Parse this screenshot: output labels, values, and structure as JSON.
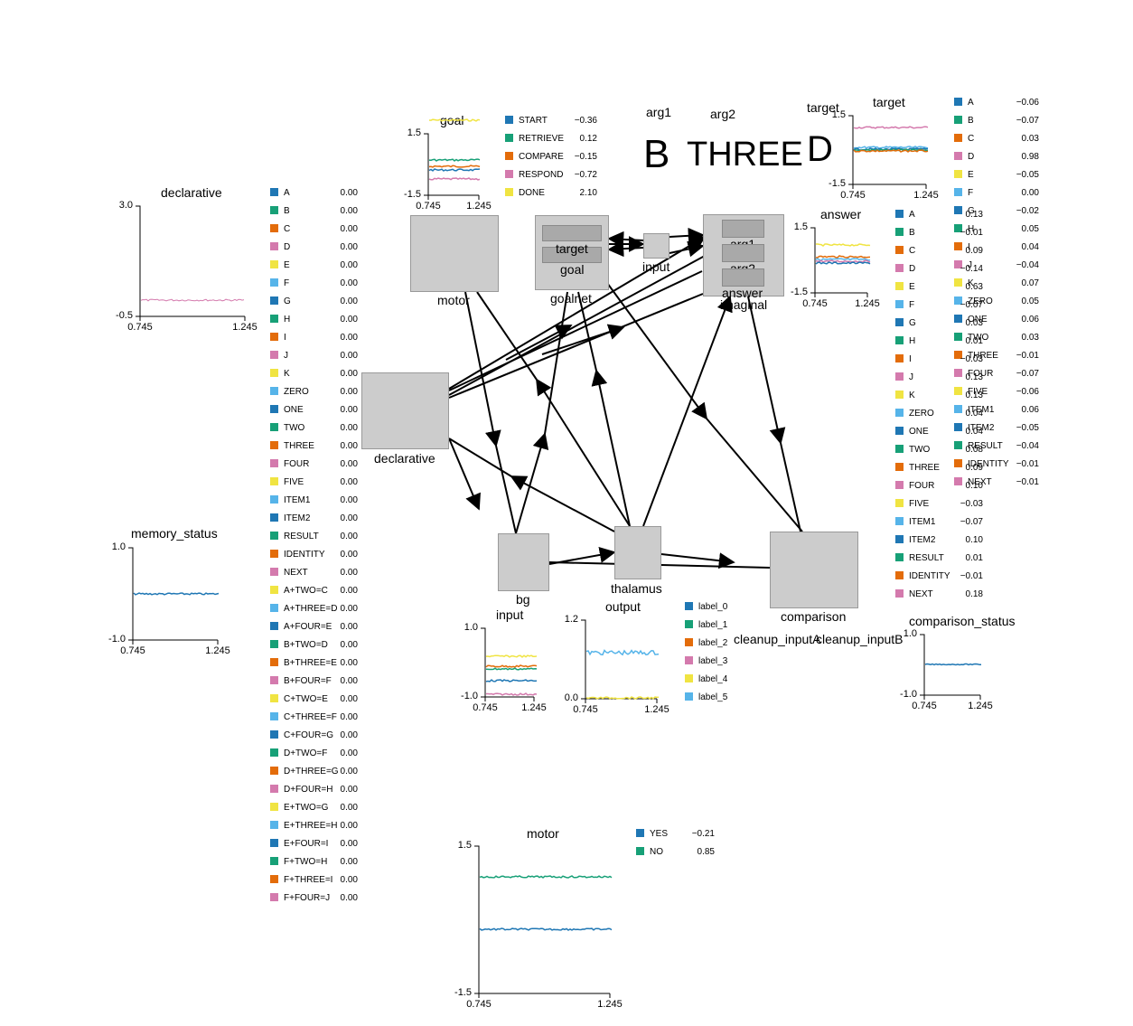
{
  "colors": {
    "c0": "#1f77b4",
    "c1": "#17a077",
    "c2": "#e36c0a",
    "c3": "#d47aad",
    "c4": "#f0e442",
    "c5": "#56b4e9",
    "node": "#cccccc",
    "subnode": "#a9a9a9"
  },
  "network": {
    "nodes": {
      "motor": "motor",
      "goalnet": "goalnet",
      "target": "target",
      "goal": "goal",
      "input": "input",
      "imaginal": "imaginal",
      "arg1": "arg1",
      "arg2": "arg2",
      "answer": "answer",
      "declarative": "declarative",
      "bg": "bg",
      "thalamus": "thalamus",
      "comparison": "comparison",
      "cleanup_inputA": "cleanup_inputA",
      "cleanup_inputB": "cleanup_inputB"
    }
  },
  "semantic_pointer_text": {
    "arg1_label": "arg1",
    "arg1_value": "B",
    "arg2_label": "arg2",
    "arg2_value": "THREE",
    "target_label": "target",
    "target_value": "D"
  },
  "plots": {
    "goal": {
      "title": "goal",
      "ymax": "1.5",
      "ymin": "-1.5",
      "xmin": "0.745",
      "xmax": "1.245",
      "legend": [
        {
          "label": "START",
          "value": "−0.36"
        },
        {
          "label": "RETRIEVE",
          "value": "0.12"
        },
        {
          "label": "COMPARE",
          "value": "−0.15"
        },
        {
          "label": "RESPOND",
          "value": "−0.72"
        },
        {
          "label": "DONE",
          "value": "2.10"
        }
      ]
    },
    "declarative": {
      "title": "declarative",
      "ymax": "3.0",
      "ymin": "-0.5",
      "xmin": "0.745",
      "xmax": "1.245",
      "legend": [
        {
          "label": "A",
          "value": "0.00"
        },
        {
          "label": "B",
          "value": "0.00"
        },
        {
          "label": "C",
          "value": "0.00"
        },
        {
          "label": "D",
          "value": "0.00"
        },
        {
          "label": "E",
          "value": "0.00"
        },
        {
          "label": "F",
          "value": "0.00"
        },
        {
          "label": "G",
          "value": "0.00"
        },
        {
          "label": "H",
          "value": "0.00"
        },
        {
          "label": "I",
          "value": "0.00"
        },
        {
          "label": "J",
          "value": "0.00"
        },
        {
          "label": "K",
          "value": "0.00"
        },
        {
          "label": "ZERO",
          "value": "0.00"
        },
        {
          "label": "ONE",
          "value": "0.00"
        },
        {
          "label": "TWO",
          "value": "0.00"
        },
        {
          "label": "THREE",
          "value": "0.00"
        },
        {
          "label": "FOUR",
          "value": "0.00"
        },
        {
          "label": "FIVE",
          "value": "0.00"
        },
        {
          "label": "ITEM1",
          "value": "0.00"
        },
        {
          "label": "ITEM2",
          "value": "0.00"
        },
        {
          "label": "RESULT",
          "value": "0.00"
        },
        {
          "label": "IDENTITY",
          "value": "0.00"
        },
        {
          "label": "NEXT",
          "value": "0.00"
        },
        {
          "label": "A+TWO=C",
          "value": "0.00"
        },
        {
          "label": "A+THREE=D",
          "value": "0.00"
        },
        {
          "label": "A+FOUR=E",
          "value": "0.00"
        },
        {
          "label": "B+TWO=D",
          "value": "0.00"
        },
        {
          "label": "B+THREE=E",
          "value": "0.00"
        },
        {
          "label": "B+FOUR=F",
          "value": "0.00"
        },
        {
          "label": "C+TWO=E",
          "value": "0.00"
        },
        {
          "label": "C+THREE=F",
          "value": "0.00"
        },
        {
          "label": "C+FOUR=G",
          "value": "0.00"
        },
        {
          "label": "D+TWO=F",
          "value": "0.00"
        },
        {
          "label": "D+THREE=G",
          "value": "0.00"
        },
        {
          "label": "D+FOUR=H",
          "value": "0.00"
        },
        {
          "label": "E+TWO=G",
          "value": "0.00"
        },
        {
          "label": "E+THREE=H",
          "value": "0.00"
        },
        {
          "label": "E+FOUR=I",
          "value": "0.00"
        },
        {
          "label": "F+TWO=H",
          "value": "0.00"
        },
        {
          "label": "F+THREE=I",
          "value": "0.00"
        },
        {
          "label": "F+FOUR=J",
          "value": "0.00"
        }
      ]
    },
    "memory_status": {
      "title": "memory_status",
      "ymax": "1.0",
      "ymin": "-1.0",
      "xmin": "0.745",
      "xmax": "1.245"
    },
    "target": {
      "title": "target",
      "ymax": "1.5",
      "ymin": "-1.5",
      "xmin": "0.745",
      "xmax": "1.245",
      "legend": [
        {
          "label": "A",
          "value": "−0.06"
        },
        {
          "label": "B",
          "value": "−0.07"
        },
        {
          "label": "C",
          "value": "0.03"
        },
        {
          "label": "D",
          "value": "0.98"
        },
        {
          "label": "E",
          "value": "−0.05"
        },
        {
          "label": "F",
          "value": "0.00"
        },
        {
          "label": "G",
          "value": "−0.02"
        },
        {
          "label": "H",
          "value": "0.05"
        },
        {
          "label": "I",
          "value": "0.04"
        },
        {
          "label": "J",
          "value": "−0.04"
        },
        {
          "label": "K",
          "value": "0.07"
        },
        {
          "label": "ZERO",
          "value": "0.05"
        },
        {
          "label": "ONE",
          "value": "0.06"
        },
        {
          "label": "TWO",
          "value": "0.03"
        },
        {
          "label": "THREE",
          "value": "−0.01"
        },
        {
          "label": "FOUR",
          "value": "−0.07"
        },
        {
          "label": "FIVE",
          "value": "−0.06"
        },
        {
          "label": "ITEM1",
          "value": "0.06"
        },
        {
          "label": "ITEM2",
          "value": "−0.05"
        },
        {
          "label": "RESULT",
          "value": "−0.04"
        },
        {
          "label": "IDENTITY",
          "value": "−0.01"
        },
        {
          "label": "NEXT",
          "value": "−0.01"
        }
      ]
    },
    "answer": {
      "title": "answer",
      "ymax": "1.5",
      "ymin": "-1.5",
      "xmin": "0.745",
      "xmax": "1.245",
      "legend": [
        {
          "label": "A",
          "value": "0.13"
        },
        {
          "label": "B",
          "value": "−0.01"
        },
        {
          "label": "C",
          "value": "0.09"
        },
        {
          "label": "D",
          "value": "−0.14"
        },
        {
          "label": "E",
          "value": "0.63"
        },
        {
          "label": "F",
          "value": "−0.07"
        },
        {
          "label": "G",
          "value": "0.03"
        },
        {
          "label": "H",
          "value": "0.01"
        },
        {
          "label": "I",
          "value": "−0.03"
        },
        {
          "label": "J",
          "value": "0.13"
        },
        {
          "label": "K",
          "value": "0.13"
        },
        {
          "label": "ZERO",
          "value": "0.04"
        },
        {
          "label": "ONE",
          "value": "0.04"
        },
        {
          "label": "TWO",
          "value": "0.08"
        },
        {
          "label": "THREE",
          "value": "0.09"
        },
        {
          "label": "FOUR",
          "value": "0.10"
        },
        {
          "label": "FIVE",
          "value": "−0.03"
        },
        {
          "label": "ITEM1",
          "value": "−0.07"
        },
        {
          "label": "ITEM2",
          "value": "0.10"
        },
        {
          "label": "RESULT",
          "value": "0.01"
        },
        {
          "label": "IDENTITY",
          "value": "−0.01"
        },
        {
          "label": "NEXT",
          "value": "0.18"
        }
      ]
    },
    "bg_input": {
      "title": "input",
      "ymax": "1.0",
      "ymin": "-1.0",
      "xmin": "0.745",
      "xmax": "1.245"
    },
    "output": {
      "title": "output",
      "ymax": "1.2",
      "ymin": "0.0",
      "xmin": "0.745",
      "xmax": "1.245",
      "legend": [
        {
          "label": "label_0"
        },
        {
          "label": "label_1"
        },
        {
          "label": "label_2"
        },
        {
          "label": "label_3"
        },
        {
          "label": "label_4"
        },
        {
          "label": "label_5"
        }
      ]
    },
    "comparison_status": {
      "title": "comparison_status",
      "ymax": "1.0",
      "ymin": "-1.0",
      "xmin": "0.745",
      "xmax": "1.245"
    },
    "motor": {
      "title": "motor",
      "ymax": "1.5",
      "ymin": "-1.5",
      "xmin": "0.745",
      "xmax": "1.245",
      "legend": [
        {
          "label": "YES",
          "value": "−0.21"
        },
        {
          "label": "NO",
          "value": "0.85"
        }
      ]
    }
  }
}
